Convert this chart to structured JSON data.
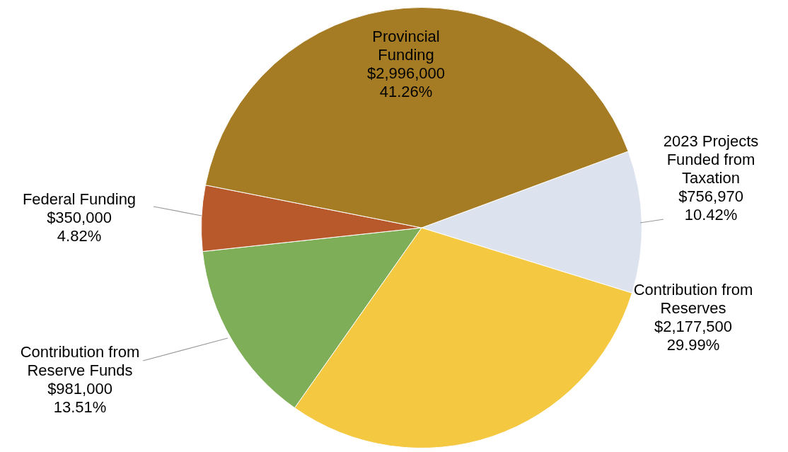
{
  "chart_data": {
    "type": "pie",
    "categories": [
      "2023 Projects Funded from Taxation",
      "Contribution from Reserves",
      "Contribution from Reserve Funds",
      "Federal Funding",
      "Provincial Funding"
    ],
    "values": [
      756970,
      2177500,
      981000,
      350000,
      2996000
    ],
    "value_labels": [
      "$756,970\n10.42%",
      "$2,177,500\n29.99%",
      "$981,000\n13.51%",
      "$350,000\n4.82%",
      "$2,996,000\n41.26%"
    ],
    "colors": [
      "#dde3ee",
      "#f5c842",
      "#7fae58",
      "#b8592c",
      "#a57c24"
    ],
    "legend": false
  }
}
